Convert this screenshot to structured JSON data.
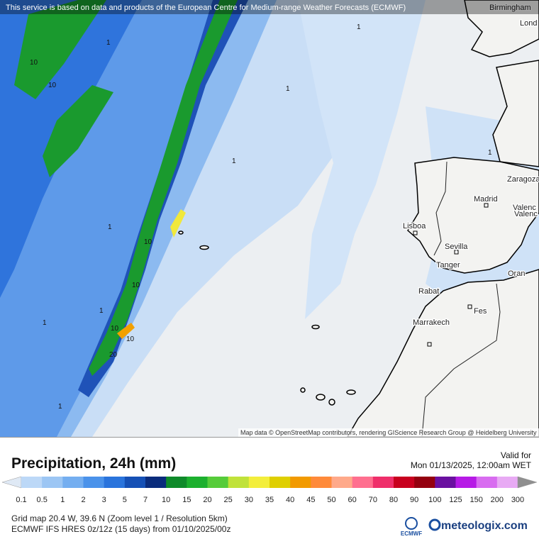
{
  "banner": "This service is based on data and products of the European Centre for Medium-range Weather Forecasts (ECMWF)",
  "map": {
    "cities": [
      "Birmingham",
      "Lond",
      "Zaragoza",
      "Madrid",
      "Valenc",
      "Valenc",
      "Lisboa",
      "Sevilla",
      "Tanger",
      "Oran",
      "Rabat",
      "Fes",
      "Marrakech"
    ],
    "contour_labels": [
      "1",
      "1",
      "1",
      "1",
      "1",
      "1",
      "1",
      "1",
      "1",
      "10",
      "10",
      "10",
      "10",
      "10",
      "10",
      "20"
    ],
    "attribution": "Map data © OpenStreetMap contributors, rendering GIScience Research Group @ Heidelberg University"
  },
  "panel": {
    "title": "Precipitation, 24h (mm)",
    "valid_label": "Valid for",
    "valid_time": "Mon 01/13/2025, 12:00am WET",
    "legend": {
      "labels": [
        "0.1",
        "0.5",
        "1",
        "2",
        "3",
        "5",
        "7",
        "10",
        "15",
        "20",
        "25",
        "30",
        "35",
        "40",
        "45",
        "50",
        "60",
        "70",
        "80",
        "90",
        "100",
        "125",
        "150",
        "200",
        "300"
      ],
      "colors": [
        "#dfe9f5",
        "#bcd8f7",
        "#9cc6f4",
        "#74aef0",
        "#4a92ea",
        "#2a74dc",
        "#1550b5",
        "#0a2c7c",
        "#0f8a2a",
        "#1cb02e",
        "#56cc3a",
        "#c0e23a",
        "#f3ee3c",
        "#dfcf00",
        "#f29a00",
        "#ff8a3a",
        "#ffa98a",
        "#ff6f8f",
        "#ef2f6a",
        "#c8001e",
        "#94000f",
        "#6a10a0",
        "#b61ae6",
        "#d86cf0",
        "#e8aaf4",
        "#f5defa",
        "#d6d6d6",
        "#8f8f8f"
      ]
    },
    "grid_info": "Grid map 20.4 W, 39.6 N (Zoom level 1 / Resolution 5km)",
    "model_info": "ECMWF IFS HRES 0z/12z (15 days) from 01/10/2025/00z",
    "logo_ecmwf": "ECMWF",
    "logo_site": "meteologix.com"
  }
}
